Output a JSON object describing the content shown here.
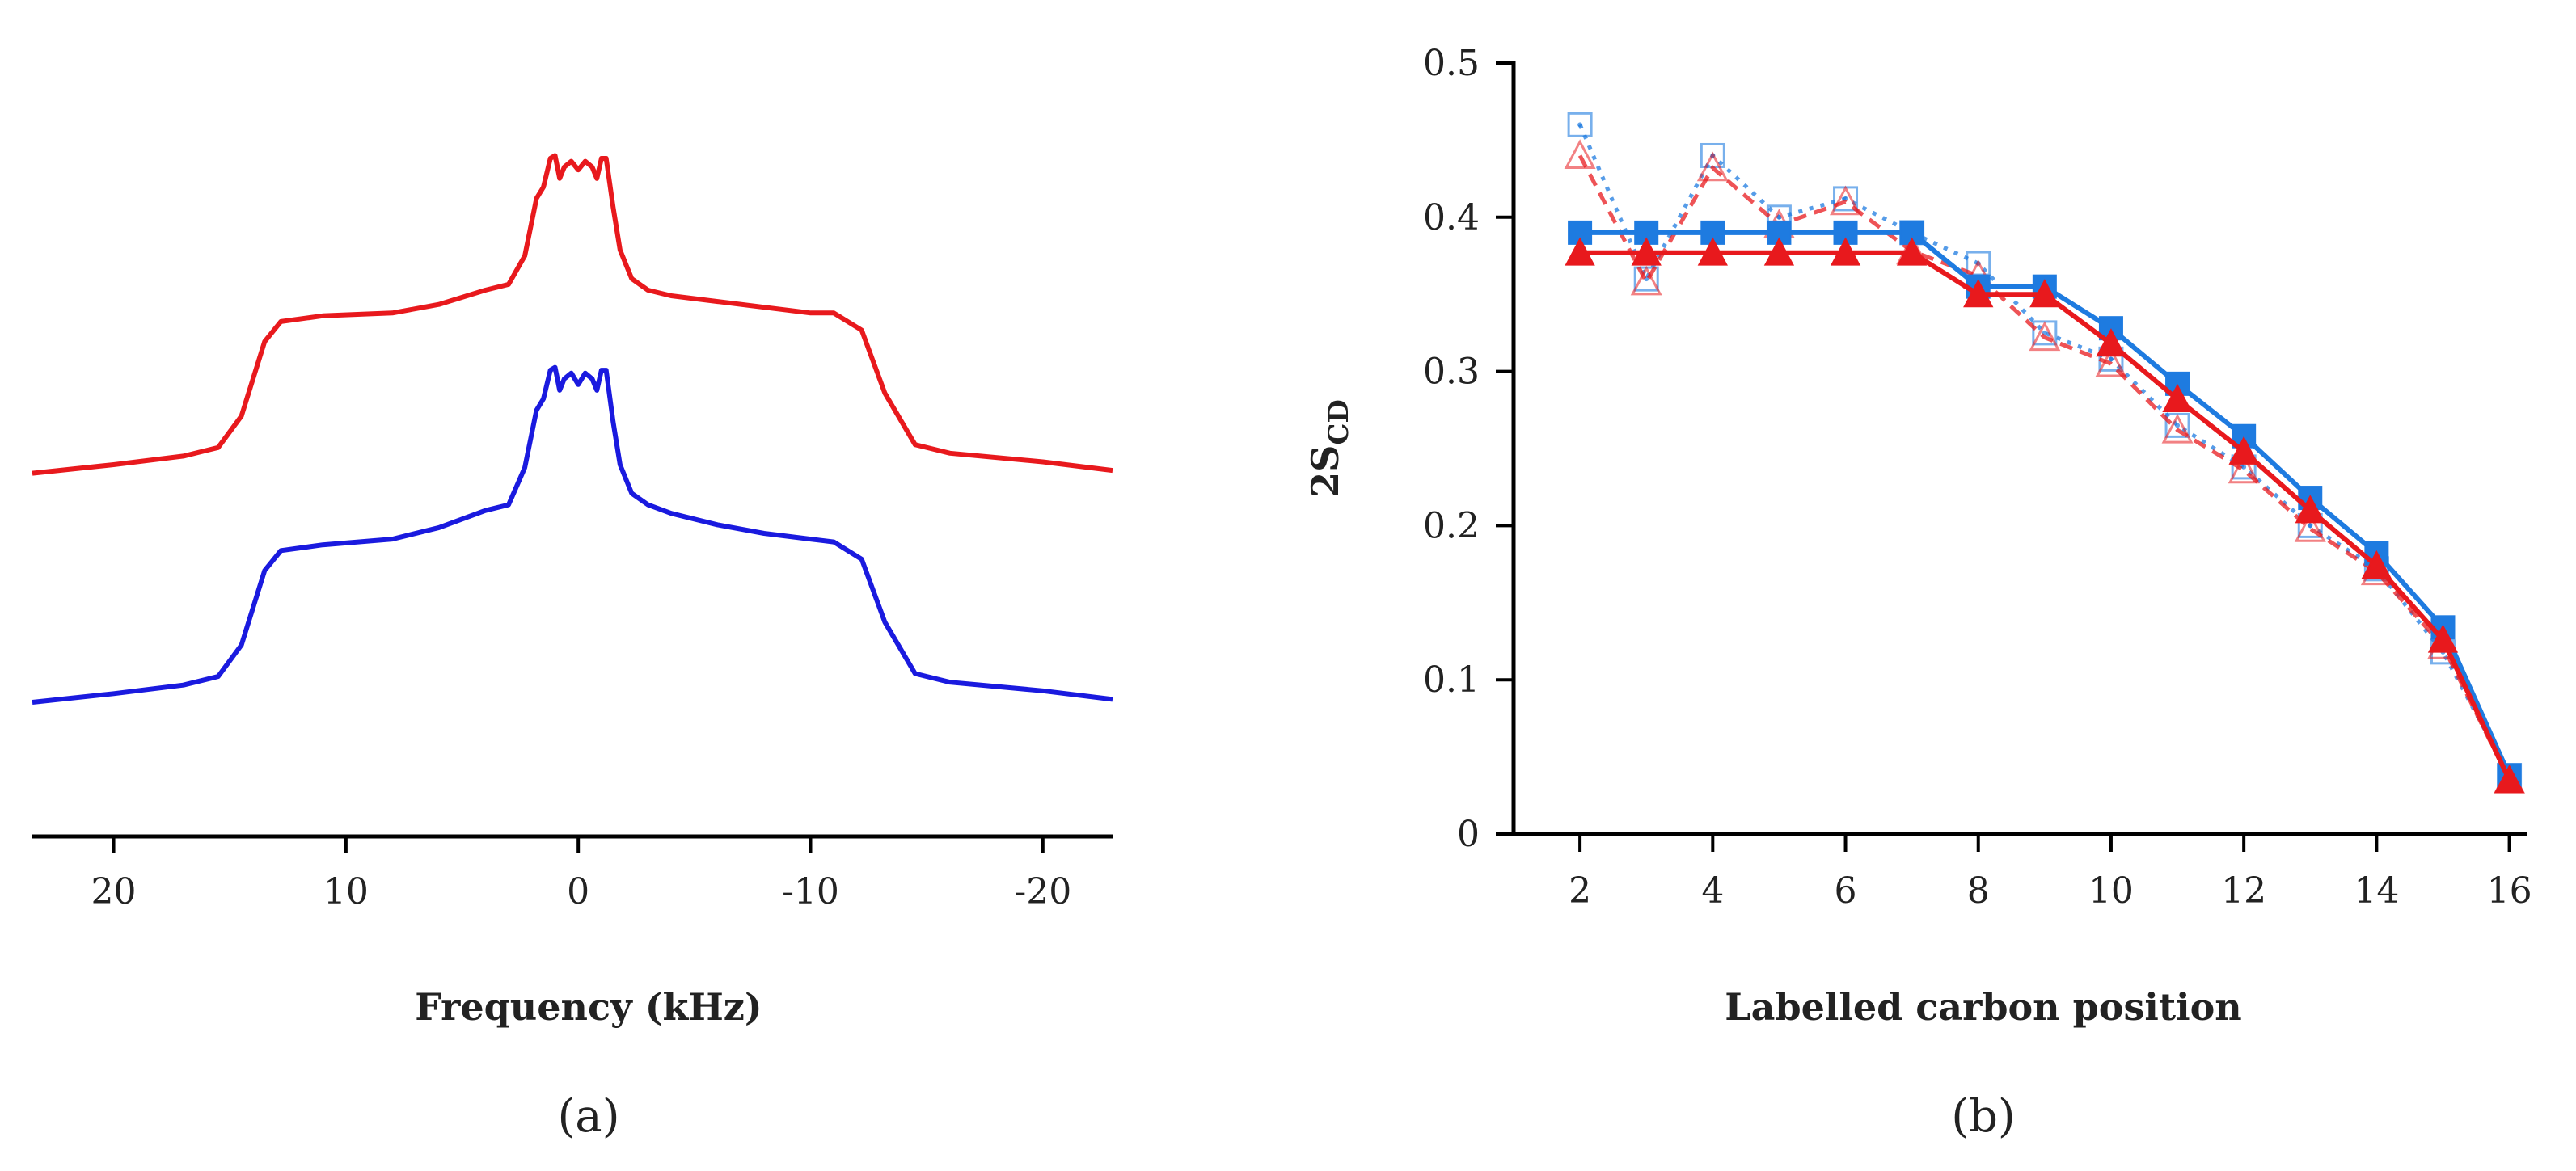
{
  "chart_data": [
    {
      "type": "line",
      "panel": "a",
      "panel_label": "(a)",
      "title": "",
      "xlabel": "Frequency (kHz)",
      "ylabel": "",
      "xlim": [
        23.5,
        -23
      ],
      "ylim": [
        -1.15,
        1.25
      ],
      "x_ticks": [
        20,
        10,
        0,
        -10,
        -20
      ],
      "x_tick_labels": [
        "20",
        "10",
        "0",
        "-10",
        "-20"
      ],
      "y_axis_shown": false,
      "grid": false,
      "legend": "none",
      "series": [
        {
          "name": "red spectrum",
          "color": "#e8191d",
          "baseline": 0.0,
          "x": [
            23.5,
            20,
            17,
            15.5,
            14.5,
            13.5,
            12.8,
            11,
            8,
            6,
            4,
            3,
            2.3,
            1.8,
            1.5,
            1.2,
            1.0,
            0.8,
            0.6,
            0.3,
            0.0,
            -0.3,
            -0.6,
            -0.8,
            -1.0,
            -1.2,
            -1.5,
            -1.8,
            -2.3,
            -3,
            -4,
            -6,
            -8,
            -10,
            -11,
            -12.2,
            -13.2,
            -14.5,
            -16,
            -20,
            -23
          ],
          "y": [
            0.02,
            0.05,
            0.08,
            0.11,
            0.22,
            0.48,
            0.55,
            0.57,
            0.58,
            0.61,
            0.66,
            0.68,
            0.78,
            0.98,
            1.02,
            1.12,
            1.13,
            1.05,
            1.09,
            1.11,
            1.08,
            1.11,
            1.09,
            1.05,
            1.12,
            1.12,
            0.95,
            0.8,
            0.7,
            0.66,
            0.64,
            0.62,
            0.6,
            0.58,
            0.58,
            0.52,
            0.3,
            0.12,
            0.09,
            0.06,
            0.03
          ]
        },
        {
          "name": "blue spectrum",
          "color": "#1a1adf",
          "baseline": -0.8,
          "x": [
            23.5,
            20,
            17,
            15.5,
            14.5,
            13.5,
            12.8,
            11,
            8,
            6,
            4,
            3,
            2.3,
            1.8,
            1.5,
            1.2,
            1.0,
            0.8,
            0.6,
            0.3,
            0.0,
            -0.3,
            -0.6,
            -0.8,
            -1.0,
            -1.2,
            -1.5,
            -1.8,
            -2.3,
            -3,
            -4,
            -6,
            -8,
            -10,
            -11,
            -12.2,
            -13.2,
            -14.5,
            -16,
            -20,
            -23
          ],
          "y": [
            0.02,
            0.05,
            0.08,
            0.11,
            0.22,
            0.48,
            0.55,
            0.57,
            0.59,
            0.63,
            0.69,
            0.71,
            0.84,
            1.04,
            1.08,
            1.18,
            1.19,
            1.11,
            1.15,
            1.17,
            1.13,
            1.17,
            1.15,
            1.11,
            1.18,
            1.18,
            1.0,
            0.85,
            0.75,
            0.71,
            0.68,
            0.64,
            0.61,
            0.59,
            0.58,
            0.52,
            0.3,
            0.12,
            0.09,
            0.06,
            0.03
          ]
        }
      ]
    },
    {
      "type": "line",
      "panel": "b",
      "panel_label": "(b)",
      "title": "",
      "xlabel": "Labelled  carbon position",
      "ylabel_main": "2S",
      "ylabel_sub": "CD",
      "xlim": [
        1,
        16.2
      ],
      "ylim": [
        0,
        0.5
      ],
      "x_ticks": [
        2,
        4,
        6,
        8,
        10,
        12,
        14,
        16
      ],
      "x_tick_labels": [
        "2",
        "4",
        "6",
        "8",
        "10",
        "12",
        "14",
        "16"
      ],
      "y_ticks": [
        0,
        0.1,
        0.2,
        0.3,
        0.4,
        0.5
      ],
      "y_tick_labels": [
        "0",
        "0.1",
        "0.2",
        "0.3",
        "0.4",
        "0.5"
      ],
      "grid": false,
      "legend": "none",
      "x": [
        2,
        3,
        4,
        5,
        6,
        7,
        8,
        9,
        10,
        11,
        12,
        13,
        14,
        15,
        16
      ],
      "series": [
        {
          "name": "blue filled squares (solid)",
          "color": "#1e7be0",
          "marker": "square-filled",
          "line": "solid",
          "values": [
            0.39,
            0.39,
            0.39,
            0.39,
            0.39,
            0.39,
            0.355,
            0.355,
            0.328,
            0.292,
            0.258,
            0.218,
            0.182,
            0.134,
            0.038
          ]
        },
        {
          "name": "red filled triangles (solid)",
          "color": "#e8191d",
          "marker": "triangle-filled",
          "line": "solid",
          "values": [
            0.377,
            0.377,
            0.377,
            0.377,
            0.377,
            0.377,
            0.35,
            0.35,
            0.318,
            0.282,
            0.248,
            0.21,
            0.174,
            0.126,
            0.035
          ]
        },
        {
          "name": "blue open squares (dotted)",
          "color": "#1e7be0",
          "marker": "square-open",
          "line": "dotted",
          "values": [
            0.46,
            0.36,
            0.44,
            0.4,
            0.412,
            0.39,
            0.37,
            0.325,
            0.308,
            0.265,
            0.238,
            0.2,
            0.172,
            0.118,
            0.038
          ]
        },
        {
          "name": "red open triangles (dashed)",
          "color": "#e8191d",
          "marker": "triangle-open",
          "line": "dashed",
          "values": [
            0.44,
            0.358,
            0.432,
            0.395,
            0.41,
            0.378,
            0.362,
            0.322,
            0.305,
            0.262,
            0.236,
            0.198,
            0.17,
            0.122,
            0.035
          ]
        }
      ]
    }
  ]
}
